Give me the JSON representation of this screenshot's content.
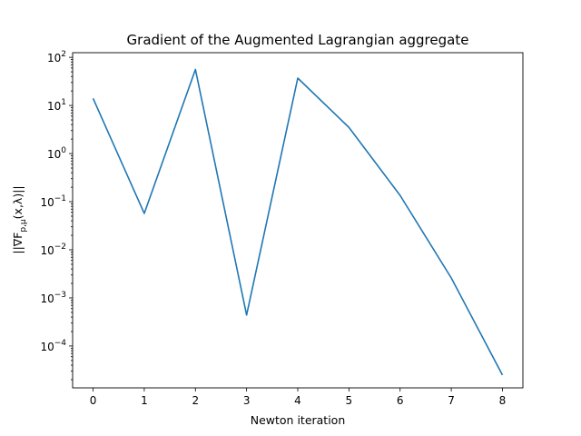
{
  "chart_data": {
    "type": "line",
    "title": "Gradient of the Augmented Lagrangian aggregate",
    "xlabel": "Newton iteration",
    "ylabel_parts": {
      "prefix": "||∇F",
      "subscript": "p,μ",
      "suffix": "(x,λ)||"
    },
    "yscale": "log",
    "xlim": [
      -0.4,
      8.4
    ],
    "ylim": [
      1.35e-05,
      125
    ],
    "x": [
      0,
      1,
      2,
      3,
      4,
      5,
      6,
      7,
      8
    ],
    "series": [
      {
        "values": [
          14,
          0.057,
          56,
          0.00044,
          37,
          3.5,
          0.135,
          0.0026,
          2.5e-05
        ],
        "color": "#1f77b4"
      }
    ],
    "xticks": [
      "0",
      "1",
      "2",
      "3",
      "4",
      "5",
      "6",
      "7",
      "8"
    ],
    "yticks": [
      {
        "value": 100,
        "base": "10",
        "exp": "2"
      },
      {
        "value": 10,
        "base": "10",
        "exp": "1"
      },
      {
        "value": 1,
        "base": "10",
        "exp": "0"
      },
      {
        "value": 0.1,
        "base": "10",
        "exp": "−1"
      },
      {
        "value": 0.01,
        "base": "10",
        "exp": "−2"
      },
      {
        "value": 0.001,
        "base": "10",
        "exp": "−3"
      },
      {
        "value": 0.0001,
        "base": "10",
        "exp": "−4"
      }
    ],
    "grid": false,
    "legend": "none"
  }
}
